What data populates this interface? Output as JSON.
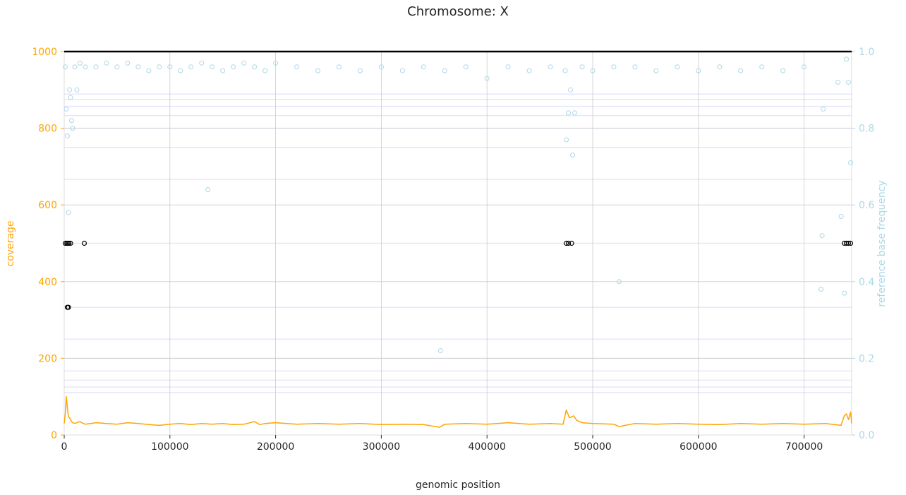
{
  "chart_data": {
    "type": "line",
    "title": "Chromosome: X",
    "xlabel": "genomic position",
    "ylabel_left": "coverage",
    "ylabel_right": "reference base frequency",
    "xlim": [
      0,
      745000
    ],
    "ylim_left": [
      0,
      1000
    ],
    "ylim_right": [
      0,
      1.0
    ],
    "x_ticks": [
      0,
      100000,
      200000,
      300000,
      400000,
      500000,
      600000,
      700000
    ],
    "x_tick_labels": [
      "0",
      "100000",
      "200000",
      "300000",
      "400000",
      "500000",
      "600000",
      "700000"
    ],
    "y_left_ticks": [
      0,
      200,
      400,
      600,
      800,
      1000
    ],
    "y_left_tick_labels": [
      "0",
      "200",
      "400",
      "600",
      "800",
      "1000"
    ],
    "y_right_ticks": [
      0.0,
      0.2,
      0.4,
      0.6,
      0.8,
      1.0
    ],
    "y_right_tick_labels": [
      "0.0",
      "0.2",
      "0.4",
      "0.6",
      "0.8",
      "1.0"
    ],
    "grid": true,
    "right_axis_reference_lines": [
      0.111,
      0.125,
      0.143,
      0.167,
      0.2,
      0.25,
      0.333,
      0.5,
      0.667,
      0.75,
      0.8,
      0.833,
      0.857,
      0.875,
      0.889,
      1.0
    ],
    "colors": {
      "coverage": "#FFA500",
      "frequency": "#ADD8E6",
      "alt_markers": "#000000",
      "grid": "#CCCCCC",
      "ref_lines": "#E6E6FA",
      "text": "#262626"
    },
    "series": [
      {
        "name": "coverage",
        "kind": "line",
        "axis": "left",
        "x": [
          0,
          1000,
          2000,
          3000,
          4000,
          5000,
          6000,
          7000,
          8000,
          10000,
          12000,
          15000,
          18000,
          20000,
          25000,
          30000,
          40000,
          50000,
          60000,
          70000,
          80000,
          90000,
          100000,
          110000,
          120000,
          130000,
          140000,
          150000,
          160000,
          170000,
          180000,
          185000,
          190000,
          200000,
          220000,
          240000,
          260000,
          280000,
          300000,
          320000,
          340000,
          355000,
          360000,
          380000,
          400000,
          420000,
          430000,
          440000,
          460000,
          472000,
          475000,
          478000,
          482000,
          485000,
          490000,
          500000,
          520000,
          525000,
          540000,
          560000,
          580000,
          600000,
          620000,
          640000,
          660000,
          680000,
          700000,
          720000,
          735000,
          738000,
          740000,
          742000,
          744000,
          745000
        ],
        "y": [
          30,
          55,
          100,
          70,
          48,
          45,
          40,
          35,
          32,
          30,
          32,
          35,
          30,
          28,
          30,
          32,
          30,
          28,
          32,
          30,
          27,
          25,
          28,
          30,
          27,
          30,
          28,
          30,
          27,
          28,
          35,
          27,
          30,
          32,
          28,
          30,
          28,
          30,
          27,
          28,
          27,
          20,
          28,
          30,
          28,
          32,
          30,
          28,
          30,
          28,
          65,
          45,
          50,
          38,
          32,
          30,
          28,
          22,
          30,
          28,
          30,
          28,
          27,
          30,
          28,
          30,
          28,
          30,
          25,
          50,
          55,
          40,
          60,
          30
        ]
      },
      {
        "name": "reference base frequency",
        "kind": "scatter",
        "axis": "right",
        "x": [
          1000,
          2000,
          3000,
          4000,
          5000,
          6000,
          7000,
          8000,
          10000,
          12000,
          15000,
          20000,
          30000,
          40000,
          50000,
          60000,
          70000,
          80000,
          90000,
          100000,
          110000,
          120000,
          130000,
          136000,
          140000,
          150000,
          160000,
          170000,
          180000,
          190000,
          200000,
          220000,
          240000,
          260000,
          280000,
          300000,
          320000,
          340000,
          356000,
          360000,
          380000,
          400000,
          420000,
          440000,
          460000,
          474000,
          475000,
          477000,
          479000,
          481000,
          483000,
          490000,
          500000,
          520000,
          525000,
          540000,
          560000,
          580000,
          600000,
          620000,
          640000,
          660000,
          680000,
          700000,
          716000,
          717000,
          718000,
          732000,
          735000,
          738000,
          740000,
          742000,
          744000
        ],
        "y": [
          0.96,
          0.85,
          0.78,
          0.58,
          0.9,
          0.88,
          0.82,
          0.8,
          0.96,
          0.9,
          0.97,
          0.96,
          0.96,
          0.97,
          0.96,
          0.97,
          0.96,
          0.95,
          0.96,
          0.96,
          0.95,
          0.96,
          0.97,
          0.64,
          0.96,
          0.95,
          0.96,
          0.97,
          0.96,
          0.95,
          0.97,
          0.96,
          0.95,
          0.96,
          0.95,
          0.96,
          0.95,
          0.96,
          0.22,
          0.95,
          0.96,
          0.93,
          0.96,
          0.95,
          0.96,
          0.95,
          0.77,
          0.84,
          0.9,
          0.73,
          0.84,
          0.96,
          0.95,
          0.96,
          0.4,
          0.96,
          0.95,
          0.96,
          0.95,
          0.96,
          0.95,
          0.96,
          0.95,
          0.96,
          0.38,
          0.52,
          0.85,
          0.92,
          0.57,
          0.37,
          0.98,
          0.92,
          0.71
        ]
      },
      {
        "name": "alt",
        "kind": "scatter",
        "axis": "right",
        "x": [
          1000,
          2500,
          3500,
          4500,
          6000,
          19000,
          475000,
          477000,
          480000,
          738000,
          740000,
          742000,
          744000,
          3000,
          4000
        ],
        "y": [
          0.5,
          0.5,
          0.5,
          0.5,
          0.5,
          0.5,
          0.5,
          0.5,
          0.5,
          0.5,
          0.5,
          0.5,
          0.5,
          0.333,
          0.333
        ]
      }
    ]
  }
}
